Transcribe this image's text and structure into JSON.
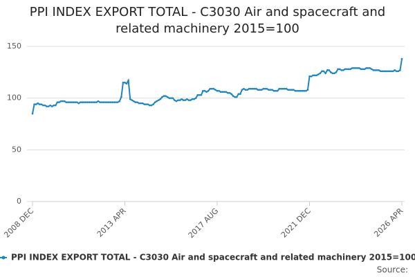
{
  "chart_data": {
    "type": "line",
    "title": "PPI INDEX EXPORT TOTAL - C3030 Air and spacecraft and related machinery 2015=100",
    "source": "Source:",
    "categories": [
      "2008 DEC",
      null,
      null,
      null,
      null,
      null,
      null,
      null,
      null,
      null,
      null,
      null,
      null,
      null,
      null,
      null,
      null,
      null,
      null,
      null,
      null,
      null,
      null,
      null,
      null,
      null,
      null,
      null,
      null,
      null,
      null,
      null,
      null,
      null,
      null,
      null,
      null,
      null,
      null,
      null,
      null,
      null,
      null,
      null,
      null,
      null,
      null,
      null,
      null,
      null,
      null,
      null,
      "2013 APR",
      null,
      null,
      null,
      null,
      null,
      null,
      null,
      null,
      null,
      null,
      null,
      null,
      null,
      null,
      null,
      null,
      null,
      null,
      null,
      null,
      null,
      null,
      null,
      null,
      null,
      null,
      null,
      null,
      null,
      null,
      null,
      null,
      null,
      null,
      null,
      null,
      null,
      null,
      null,
      null,
      null,
      null,
      null,
      null,
      null,
      null,
      null,
      null,
      null,
      null,
      null,
      "2017 AUG",
      null,
      null,
      null,
      null,
      null,
      null,
      null,
      null,
      null,
      null,
      null,
      null,
      null,
      null,
      null,
      null,
      null,
      null,
      null,
      null,
      null,
      null,
      null,
      null,
      null,
      null,
      null,
      null,
      null,
      null,
      null,
      null,
      null,
      null,
      null,
      null,
      null,
      null,
      null,
      null,
      null,
      null,
      null,
      null,
      null,
      null,
      null,
      null,
      null,
      null,
      null,
      "2021 DEC",
      null,
      null,
      null,
      null,
      null,
      null,
      null,
      null,
      null,
      null,
      null,
      null,
      null,
      null,
      null,
      null,
      null,
      null,
      null,
      null,
      null,
      null,
      null,
      null,
      null,
      null,
      null,
      null,
      null,
      null,
      null,
      null,
      null,
      null,
      null,
      null,
      null,
      null,
      null,
      null,
      null,
      null,
      null,
      null,
      null,
      null,
      null,
      null,
      null,
      null,
      null,
      "2026 APR"
    ],
    "series": [
      {
        "name": "PPI INDEX EXPORT TOTAL - C3030 Air and spacecraft and related machinery 2015=100",
        "color": "#1a86c3",
        "values": [
          85,
          94,
          94,
          95,
          94,
          94,
          93,
          93,
          92,
          92,
          93,
          92,
          93,
          93,
          96,
          96,
          97,
          97,
          97,
          96,
          96,
          96,
          96,
          96,
          96,
          96,
          95,
          96,
          96,
          96,
          96,
          96,
          96,
          96,
          96,
          96,
          96,
          97,
          96,
          96,
          96,
          96,
          96,
          96,
          96,
          96,
          96,
          96,
          96,
          97,
          101,
          115,
          115,
          114,
          117,
          99,
          98,
          97,
          96,
          96,
          95,
          95,
          95,
          94,
          94,
          94,
          93,
          93,
          94,
          96,
          97,
          98,
          99,
          101,
          102,
          102,
          101,
          100,
          100,
          100,
          98,
          97,
          98,
          98,
          99,
          98,
          98,
          99,
          98,
          98,
          99,
          99,
          100,
          103,
          103,
          103,
          107,
          107,
          106,
          107,
          109,
          109,
          109,
          108,
          107,
          107,
          106,
          106,
          106,
          106,
          105,
          105,
          104,
          102,
          101,
          101,
          104,
          104,
          108,
          109,
          108,
          108,
          109,
          109,
          109,
          109,
          109,
          108,
          108,
          108,
          109,
          109,
          109,
          108,
          108,
          108,
          107,
          107,
          107,
          109,
          109,
          109,
          109,
          109,
          108,
          108,
          108,
          108,
          107,
          107,
          107,
          107,
          107,
          107,
          107,
          108,
          121,
          121,
          122,
          122,
          122,
          123,
          124,
          126,
          126,
          124,
          127,
          127,
          125,
          124,
          124,
          125,
          128,
          128,
          127,
          127,
          128,
          128,
          128,
          128,
          129,
          129,
          129,
          129,
          129,
          128,
          128,
          128,
          129,
          129,
          129,
          128,
          127,
          127,
          127,
          127,
          126,
          126,
          126,
          126,
          126,
          126,
          126,
          126,
          127,
          126,
          126,
          127,
          138
        ]
      }
    ],
    "ylim": [
      0,
      150
    ],
    "yticks": [
      0,
      50,
      100,
      150
    ],
    "grid": true
  }
}
